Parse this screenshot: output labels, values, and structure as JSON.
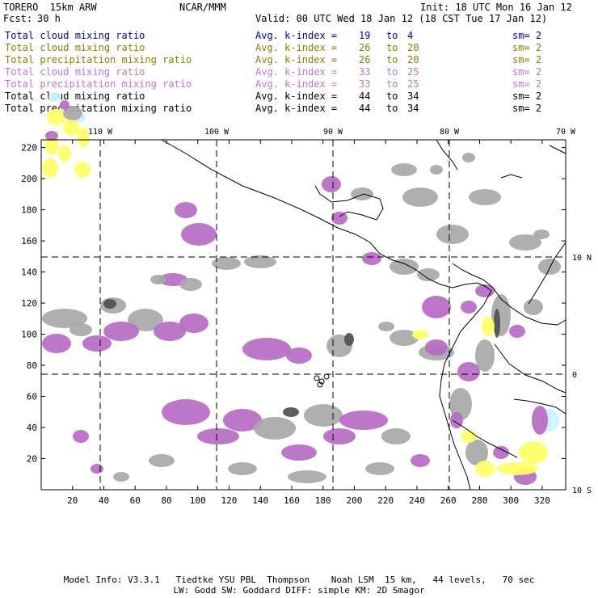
{
  "header": {
    "model": "TORERO  15km ARW",
    "org": "NCAR/MMM",
    "init": "Init: 18 UTC Mon 16 Jan 12",
    "fcst_label": "Fcst:",
    "fcst_value": "30 h",
    "valid": "Valid: 00 UTC Wed 18 Jan 12 (18 CST Tue 17 Jan 12)"
  },
  "legend": [
    {
      "name": "Total cloud mixing ratio",
      "avg": "Avg. k-index =",
      "from": "19",
      "to_word": "to",
      "to": "4",
      "sm": "sm= 2",
      "color": "#0000cc"
    },
    {
      "name": "Total cloud mixing ratio",
      "avg": "Avg. k-index =",
      "from": "26",
      "to_word": "to",
      "to": "20",
      "sm": "sm= 2",
      "color": "#8b7d00"
    },
    {
      "name": "Total precipitation mixing ratio",
      "avg": "Avg. k-index =",
      "from": "26",
      "to_word": "to",
      "to": "20",
      "sm": "sm= 2",
      "color": "#8b7d00"
    },
    {
      "name": "Total cloud mixing ratio",
      "avg": "Avg. k-index =",
      "from": "33",
      "to_word": "to",
      "to": "25",
      "sm": "sm= 2",
      "color": "#bb77cc"
    },
    {
      "name": "Total precipitation mixing ratio",
      "avg": "Avg. k-index =",
      "from": "33",
      "to_word": "to",
      "to": "25",
      "sm": "sm= 2",
      "color": "#bb77cc"
    },
    {
      "name": "Total cloud mixing ratio",
      "avg": "Avg. k-index =",
      "from": "44",
      "to_word": "to",
      "to": "34",
      "sm": "sm= 2",
      "color": "#000000"
    },
    {
      "name": "Total precipitation mixing ratio",
      "avg": "Avg. k-index =",
      "from": "44",
      "to_word": "to",
      "to": "34",
      "sm": "sm= 2",
      "color": "#000000"
    }
  ],
  "map": {
    "lon_labels": [
      "110 W",
      "100 W",
      "90 W",
      "80 W",
      "70 W"
    ],
    "lat_labels": [
      "10 N",
      "0",
      "10 S"
    ],
    "x_ticks": [
      "20",
      "40",
      "60",
      "80",
      "100",
      "120",
      "140",
      "160",
      "180",
      "200",
      "220",
      "240",
      "260",
      "280",
      "300",
      "320"
    ],
    "y_ticks": [
      "20",
      "40",
      "60",
      "80",
      "100",
      "120",
      "140",
      "160",
      "180",
      "200",
      "220"
    ],
    "colors": {
      "purple": "#b76bc4",
      "gray": "#a8a8a8",
      "dark_gray": "#505050",
      "yellow": "#ffff66",
      "cyan": "#ccf2ff",
      "coast": "#000000"
    }
  },
  "footer": {
    "line1": "Model Info: V3.3.1   Tiedtke YSU PBL  Thompson    Noah LSM  15 km,   44 levels,   70 sec",
    "line2": "LW: Godd SW: Goddard DIFF: simple KM: 2D Smagor"
  }
}
